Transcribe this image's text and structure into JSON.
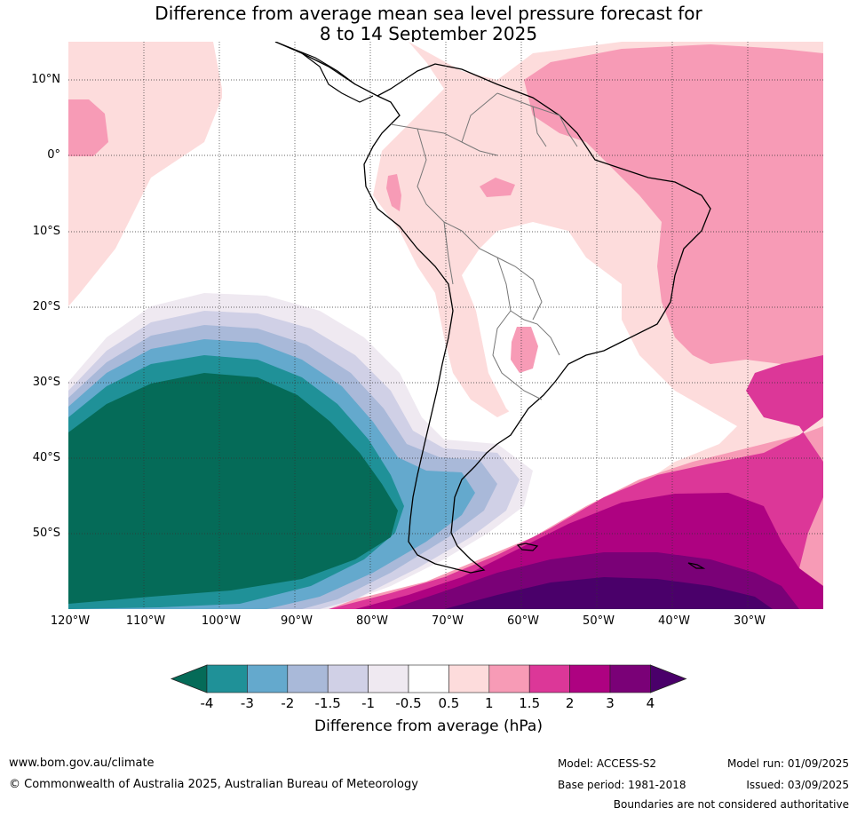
{
  "title_line1": "Difference from average mean sea level pressure forecast for",
  "title_line2": "8 to 14 September 2025",
  "lat_labels": [
    "10°N",
    "0°",
    "10°S",
    "20°S",
    "30°S",
    "40°S",
    "50°S"
  ],
  "lon_labels": [
    "120°W",
    "110°W",
    "100°W",
    "90°W",
    "80°W",
    "70°W",
    "60°W",
    "50°W",
    "40°W",
    "30°W"
  ],
  "colorbar": {
    "ticks": [
      "-4",
      "-3",
      "-2",
      "-1.5",
      "-1",
      "-0.5",
      "0.5",
      "1",
      "1.5",
      "2",
      "3",
      "4"
    ],
    "colors": [
      "#056b58",
      "#1f9198",
      "#64a9cd",
      "#a9b9d9",
      "#d0d0e6",
      "#efe9f1",
      "#ffffff",
      "#fddcdc",
      "#f79bb6",
      "#dc3798",
      "#ae0281",
      "#7a0177",
      "#4a006a"
    ],
    "label": "Difference from average (hPa)"
  },
  "footer": {
    "url": "www.bom.gov.au/climate",
    "copyright": "© Commonwealth of Australia 2025, Australian Bureau of Meteorology",
    "model": "Model: ACCESS-S2",
    "base_period": "Base period: 1981-2018",
    "model_run": "Model run: 01/09/2025",
    "issued": "Issued: 03/09/2025",
    "disclaimer": "Boundaries are not considered authoritative"
  }
}
